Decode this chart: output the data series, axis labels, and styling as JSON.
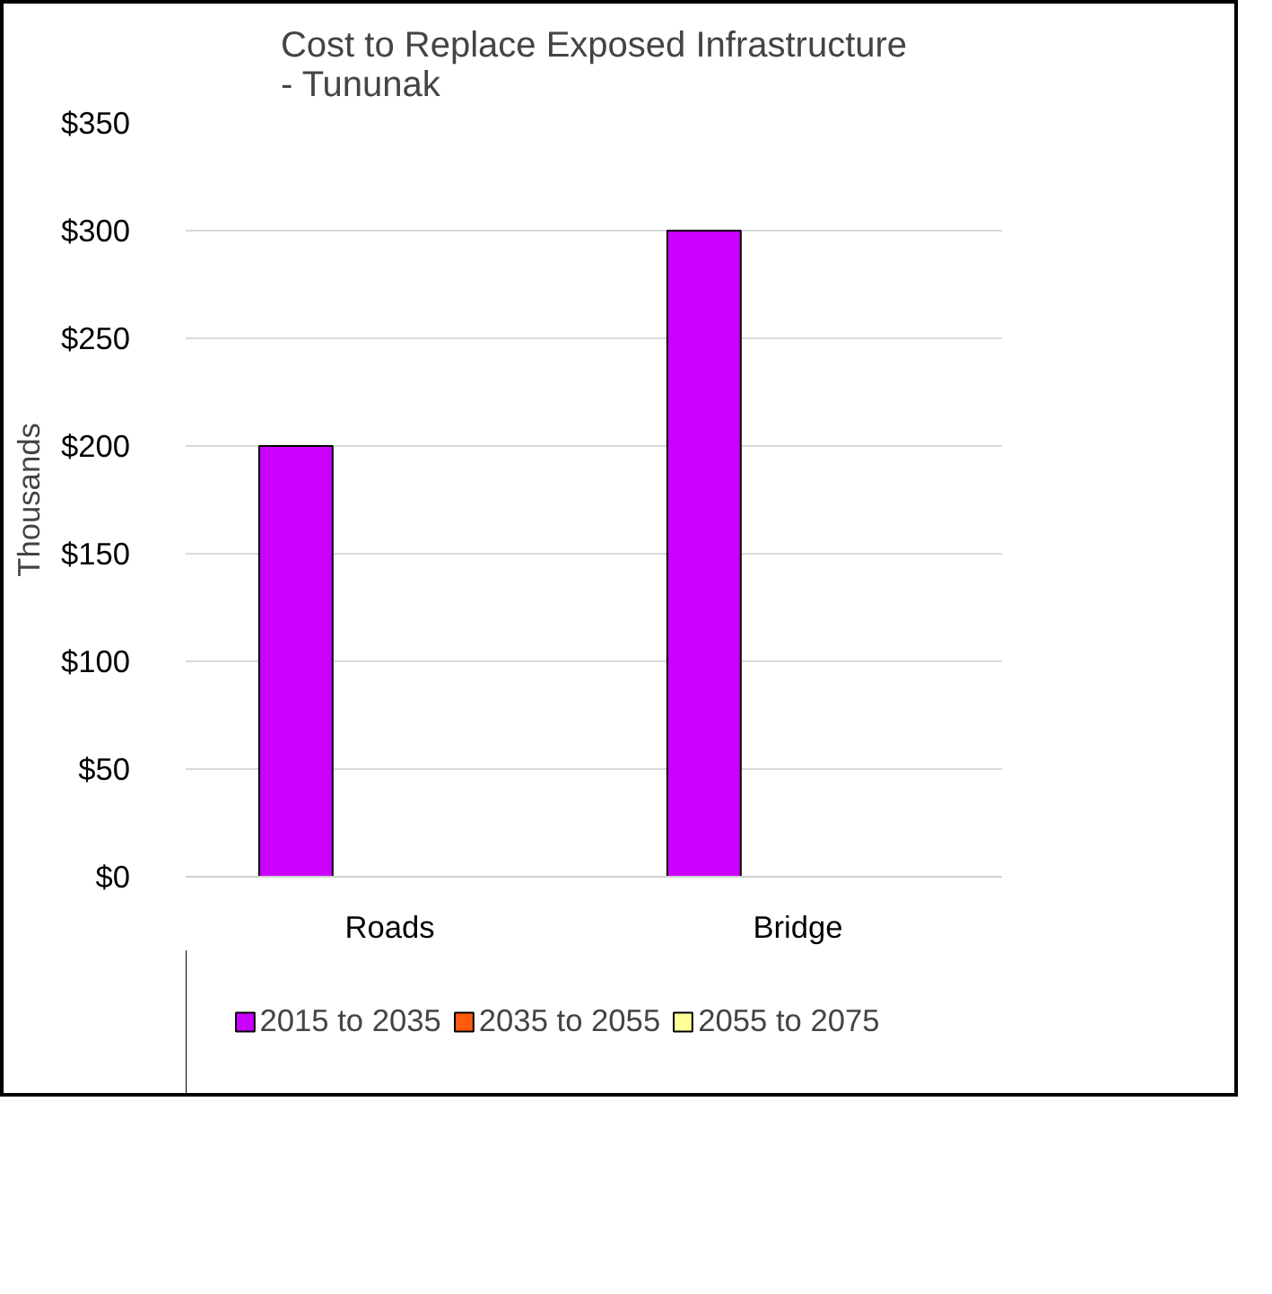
{
  "chart_data": {
    "type": "bar",
    "title": "Cost to Replace Exposed Infrastructure\n- Tununak",
    "ylabel": "Thousands",
    "categories": [
      "Roads",
      "Bridge"
    ],
    "series": [
      {
        "name": "2015 to 2035",
        "color": "#cc00ff",
        "values": [
          200,
          300
        ]
      },
      {
        "name": "2035 to 2055",
        "color": "#ff5b0f",
        "values": [
          0,
          0
        ]
      },
      {
        "name": "2055 to 2075",
        "color": "#ffff99",
        "values": [
          0,
          0
        ]
      }
    ],
    "ylim": [
      0,
      350
    ],
    "yticks": [
      {
        "value": 0,
        "label": "$0"
      },
      {
        "value": 50,
        "label": "$50"
      },
      {
        "value": 100,
        "label": "$100"
      },
      {
        "value": 150,
        "label": "$150"
      },
      {
        "value": 200,
        "label": "$200"
      },
      {
        "value": 250,
        "label": "$250"
      },
      {
        "value": 300,
        "label": "$300"
      },
      {
        "value": 350,
        "label": "$350"
      }
    ],
    "grid": "y",
    "legend": "bottom"
  }
}
